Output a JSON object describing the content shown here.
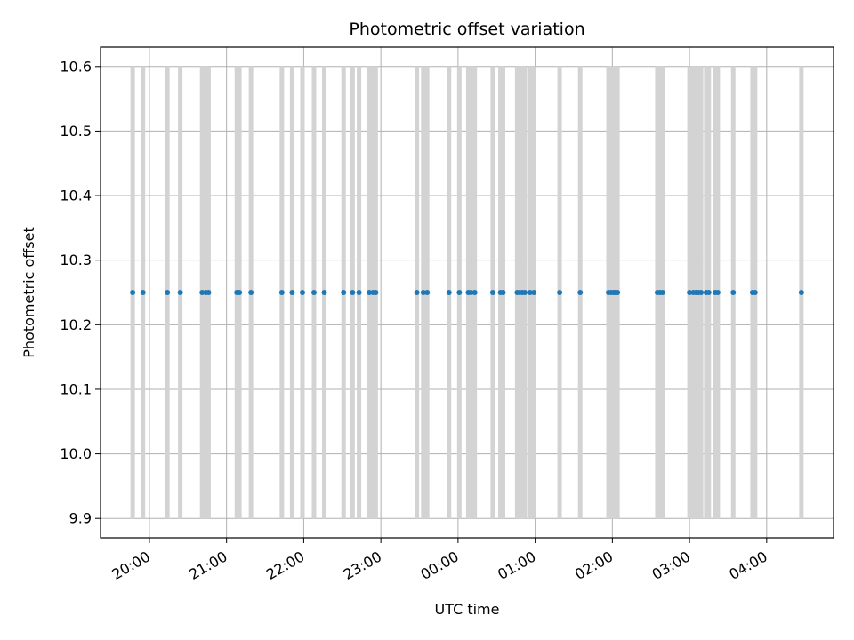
{
  "chart_data": {
    "type": "scatter",
    "title": "Photometric offset variation",
    "xlabel": "UTC time",
    "ylabel": "Photometric offset",
    "xlim": [
      "19:22",
      "04:52"
    ],
    "ylim": [
      9.87,
      10.63
    ],
    "grid": true,
    "x_ticks": [
      "20:00",
      "21:00",
      "22:00",
      "23:00",
      "00:00",
      "01:00",
      "02:00",
      "03:00",
      "04:00"
    ],
    "y_ticks": [
      "9.9",
      "10.0",
      "10.1",
      "10.2",
      "10.3",
      "10.4",
      "10.5",
      "10.6"
    ],
    "colors": {
      "points": "#1f77b4",
      "bands": "#d3d3d3",
      "grid": "#b0b0b0"
    },
    "bands": {
      "ymin": 9.9,
      "ymax": 10.6,
      "times": [
        "19:47",
        "19:55",
        "20:14",
        "20:24",
        "20:41",
        "20:44",
        "20:46",
        "21:08",
        "21:10",
        "21:19",
        "21:43",
        "21:51",
        "21:59",
        "22:08",
        "22:16",
        "22:31",
        "22:38",
        "22:43",
        "22:51",
        "22:54",
        "22:56",
        "23:28",
        "23:33",
        "23:36",
        "23:53",
        "24:01",
        "24:08",
        "24:10",
        "24:13",
        "24:27",
        "24:33",
        "24:35",
        "24:46",
        "24:48",
        "24:50",
        "24:52",
        "24:56",
        "24:59",
        "25:19",
        "25:35",
        "25:57",
        "25:59",
        "26:01",
        "26:02",
        "26:04",
        "26:35",
        "26:37",
        "26:39",
        "27:00",
        "27:03",
        "27:05",
        "27:07",
        "27:09",
        "27:13",
        "27:15",
        "27:20",
        "27:22",
        "27:34",
        "27:49",
        "27:51",
        "28:27"
      ]
    },
    "series": [
      {
        "x": [
          "19:47",
          "19:55",
          "20:14",
          "20:24",
          "20:41",
          "20:44",
          "20:46",
          "21:08",
          "21:10",
          "21:19",
          "21:43",
          "21:51",
          "21:59",
          "22:08",
          "22:16",
          "22:31",
          "22:38",
          "22:43",
          "22:51",
          "22:54",
          "22:56",
          "23:28",
          "23:33",
          "23:36",
          "23:53",
          "24:01",
          "24:08",
          "24:10",
          "24:13",
          "24:27",
          "24:33",
          "24:35",
          "24:46",
          "24:48",
          "24:50",
          "24:52",
          "24:56",
          "24:59",
          "25:19",
          "25:35",
          "25:57",
          "25:59",
          "26:01",
          "26:02",
          "26:04",
          "26:35",
          "26:37",
          "26:39",
          "27:00",
          "27:03",
          "27:05",
          "27:07",
          "27:09",
          "27:13",
          "27:15",
          "27:20",
          "27:22",
          "27:34",
          "27:49",
          "27:51",
          "28:27"
        ],
        "y": [
          10.25,
          10.25,
          10.25,
          10.25,
          10.25,
          10.25,
          10.25,
          10.25,
          10.25,
          10.25,
          10.25,
          10.25,
          10.25,
          10.25,
          10.25,
          10.25,
          10.25,
          10.25,
          10.25,
          10.25,
          10.25,
          10.25,
          10.25,
          10.25,
          10.25,
          10.25,
          10.25,
          10.25,
          10.25,
          10.25,
          10.25,
          10.25,
          10.25,
          10.25,
          10.25,
          10.25,
          10.25,
          10.25,
          10.25,
          10.25,
          10.25,
          10.25,
          10.25,
          10.25,
          10.25,
          10.25,
          10.25,
          10.25,
          10.25,
          10.25,
          10.25,
          10.25,
          10.25,
          10.25,
          10.25,
          10.25,
          10.25,
          10.25,
          10.25,
          10.25,
          10.25
        ]
      }
    ]
  }
}
